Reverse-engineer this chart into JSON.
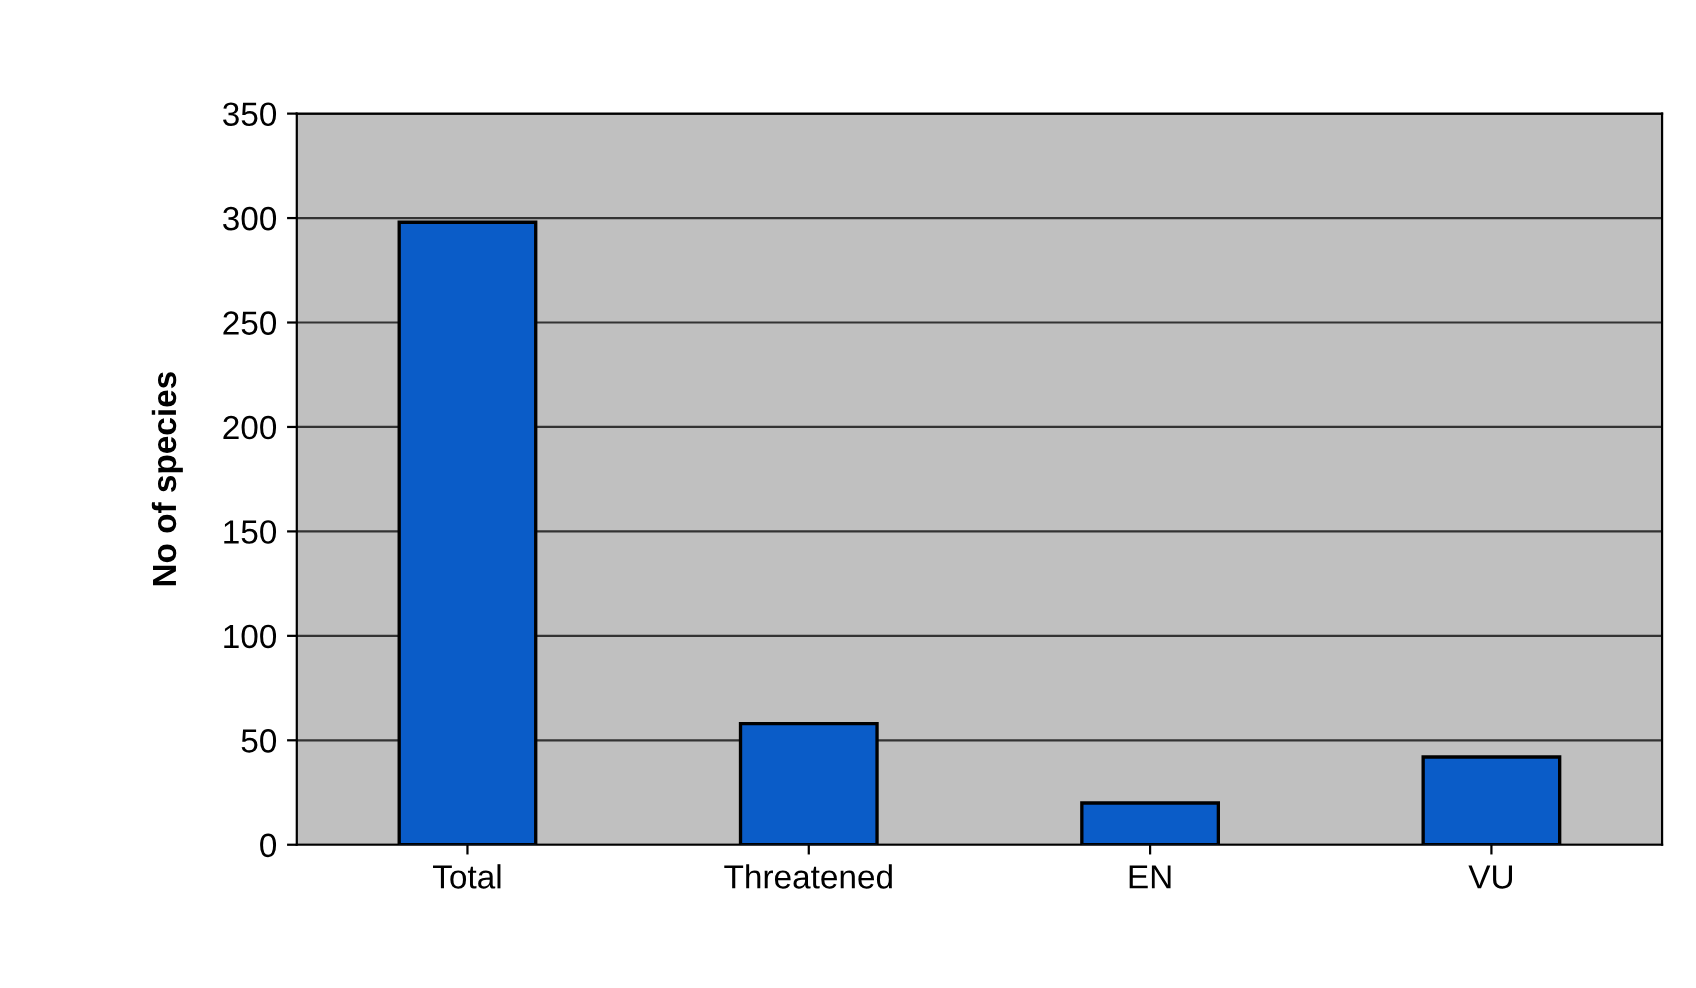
{
  "chart_data": {
    "type": "bar",
    "ylabel": "No of species",
    "categories": [
      "Total",
      "Threatened",
      "EN",
      "VU"
    ],
    "values": [
      298,
      58,
      20,
      42
    ],
    "color": "#0a5cc8",
    "ylim": [
      0,
      350
    ],
    "yticks": [
      0,
      50,
      100,
      150,
      200,
      250,
      300,
      350
    ],
    "grid": "y",
    "legend": false
  }
}
